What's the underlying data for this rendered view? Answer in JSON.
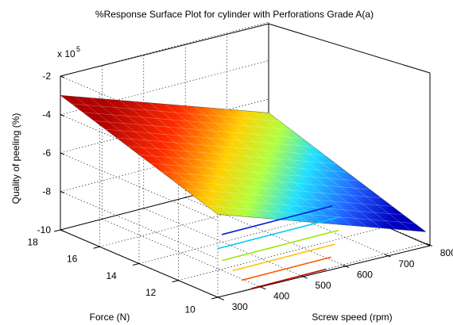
{
  "chart_data": {
    "type": "surface",
    "title": "%Response Surface Plot for cylinder with Perforations Grade A(a)",
    "xlabel": "Screw speed (rpm)",
    "ylabel": "Force (N)",
    "zlabel": "Quality of peeling (%)",
    "z_multiplier_label": "x 10",
    "z_multiplier_exponent": "5",
    "xlim": [
      300,
      800
    ],
    "ylim": [
      10,
      18
    ],
    "zlim": [
      -10,
      -2
    ],
    "x_ticks": [
      "300",
      "400",
      "500",
      "600",
      "700",
      "800"
    ],
    "y_ticks": [
      "10",
      "12",
      "14",
      "16",
      "18"
    ],
    "z_ticks": [
      "-2",
      "-4",
      "-6",
      "-8",
      "-10"
    ],
    "grid": true,
    "colormap": "jet",
    "surface_z_range": [
      -9.4,
      -3.0
    ],
    "contour_lines": [
      {
        "color": "#c00000",
        "start": [
          0.16,
          1.0
        ],
        "end": [
          0.52,
          1.0
        ]
      },
      {
        "color": "#ff5a00",
        "start": [
          0.19,
          0.9
        ],
        "end": [
          0.62,
          0.9
        ]
      },
      {
        "color": "#ffc400",
        "start": [
          0.23,
          0.79
        ],
        "end": [
          0.72,
          0.79
        ]
      },
      {
        "color": "#9ce600",
        "start": [
          0.27,
          0.67
        ],
        "end": [
          0.83,
          0.67
        ]
      },
      {
        "color": "#00ccee",
        "start": [
          0.34,
          0.55
        ],
        "end": [
          0.93,
          0.55
        ]
      },
      {
        "color": "#0020d0",
        "start": [
          0.45,
          0.43
        ],
        "end": [
          0.98,
          0.43
        ]
      }
    ]
  }
}
